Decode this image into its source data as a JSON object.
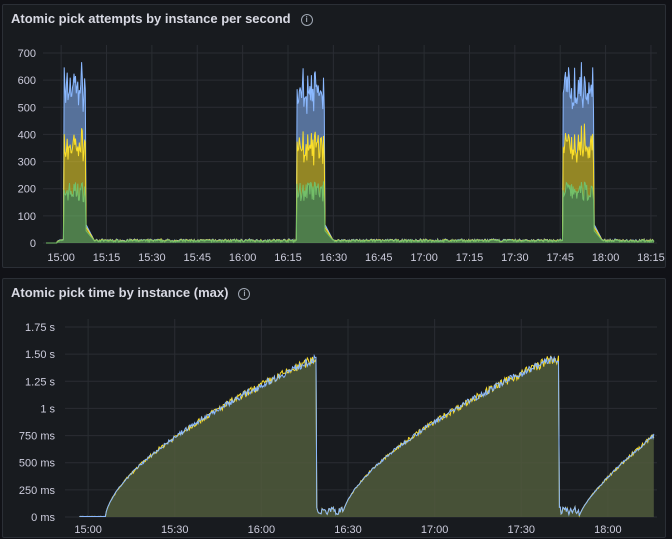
{
  "panels": [
    {
      "title": "Atomic pick attempts by instance per second",
      "info_icon": "info-icon",
      "chart_data": {
        "type": "area",
        "stacked": true,
        "y_ticks": [
          "700",
          "600",
          "500",
          "400",
          "300",
          "200",
          "100",
          "0"
        ],
        "y_tick_values": [
          700,
          600,
          500,
          400,
          300,
          200,
          100,
          0
        ],
        "ylim": [
          0,
          700
        ],
        "x_ticks": [
          "15:00",
          "15:15",
          "15:30",
          "15:45",
          "16:00",
          "16:15",
          "16:30",
          "16:45",
          "17:00",
          "17:15",
          "17:30",
          "17:45",
          "18:00",
          "18:15"
        ],
        "x_tick_minutes": [
          0,
          15,
          30,
          45,
          60,
          75,
          90,
          105,
          120,
          135,
          150,
          165,
          180,
          195
        ],
        "xlim_minutes": [
          -6,
          197
        ],
        "bursts": [
          {
            "start": 1,
            "end": 8,
            "green": 190,
            "yellow": 170,
            "blue": 220
          },
          {
            "start": 78,
            "end": 87,
            "green": 190,
            "yellow": 160,
            "blue": 210
          },
          {
            "start": 166,
            "end": 176,
            "green": 190,
            "yellow": 175,
            "blue": 215
          }
        ],
        "baseline": 10,
        "colors": {
          "green": "#73bf69",
          "yellow": "#fade2a",
          "blue": "#8ab8ff"
        },
        "grid": true,
        "legend": "none"
      }
    },
    {
      "title": "Atomic pick time by instance (max)",
      "info_icon": "info-icon",
      "chart_data": {
        "type": "line",
        "y_ticks": [
          "1.75 s",
          "1.50 s",
          "1.25 s",
          "1 s",
          "750 ms",
          "500 ms",
          "250 ms",
          "0 ms"
        ],
        "y_tick_values": [
          1.75,
          1.5,
          1.25,
          1,
          0.75,
          0.5,
          0.25,
          0
        ],
        "ylim": [
          0,
          1.78
        ],
        "x_ticks": [
          "15:00",
          "15:30",
          "16:00",
          "16:30",
          "17:00",
          "17:30",
          "18:00"
        ],
        "x_tick_minutes": [
          0,
          30,
          60,
          90,
          120,
          150,
          180
        ],
        "xlim_minutes": [
          -8,
          197
        ],
        "segments": [
          {
            "start": 6,
            "end": 79,
            "peak": 1.45
          },
          {
            "start": 88,
            "end": 163,
            "peak": 1.45
          },
          {
            "start": 170,
            "end": 197,
            "peak": 0.75
          }
        ],
        "gap_level": 0.07,
        "colors": {
          "line": "#8ab8ff",
          "line2": "#fade2a",
          "fill": "#505a3c"
        },
        "grid": true,
        "legend": "none"
      }
    }
  ]
}
